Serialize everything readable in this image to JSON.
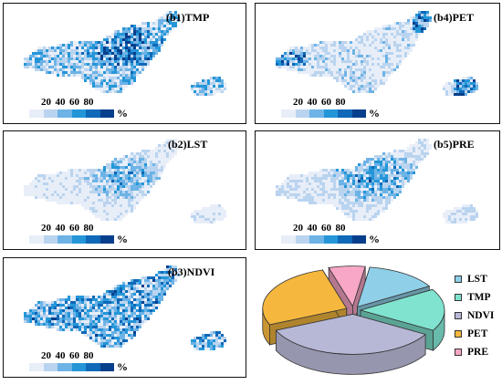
{
  "legend": {
    "ticks": [
      "20",
      "40",
      "60",
      "80"
    ],
    "unit": "%",
    "colors": [
      "#e8eef8",
      "#bad4ef",
      "#6db3e6",
      "#2496d8",
      "#0f68b8",
      "#083f8c"
    ]
  },
  "panels": [
    {
      "id": "b1",
      "title": "(b1)TMP",
      "intensity": 0.55,
      "focus": "center"
    },
    {
      "id": "b2",
      "title": "(b2)LST",
      "intensity": 0.22,
      "focus": "center"
    },
    {
      "id": "b3",
      "title": "(b3)NDVI",
      "intensity": 0.6,
      "focus": "spread"
    },
    {
      "id": "b4",
      "title": "(b4)PET",
      "intensity": 0.4,
      "focus": "edges"
    },
    {
      "id": "b5",
      "title": "(b5)PRE",
      "intensity": 0.32,
      "focus": "center"
    }
  ],
  "chart_data": {
    "type": "pie",
    "style": "3d-exploded",
    "categories": [
      "LST",
      "TMP",
      "NDVI",
      "PET",
      "PRE"
    ],
    "values": [
      14,
      17,
      35,
      27,
      7
    ],
    "colors": [
      "#8fd0e8",
      "#7fe3cf",
      "#b7b7d6",
      "#f5b73e",
      "#f8a7c6"
    ]
  }
}
